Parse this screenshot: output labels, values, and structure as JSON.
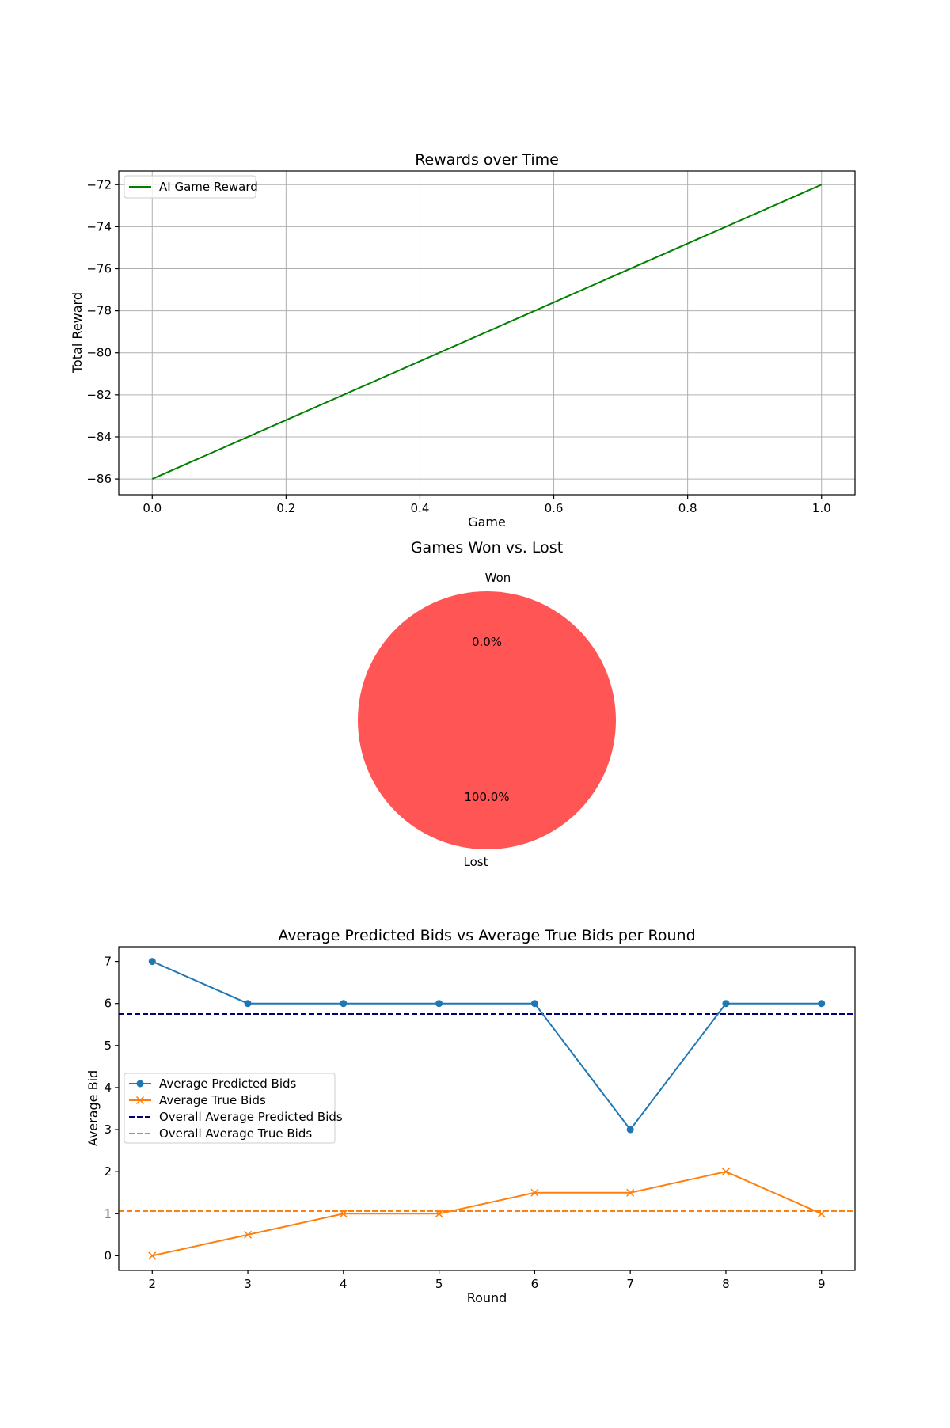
{
  "chart_data": [
    {
      "type": "line",
      "title": "Rewards over Time",
      "xlabel": "Game",
      "ylabel": "Total Reward",
      "xlim": [
        -0.05,
        1.05
      ],
      "ylim": [
        -86.75,
        -71.35
      ],
      "x_ticks": [
        0.0,
        0.2,
        0.4,
        0.6,
        0.8,
        1.0
      ],
      "x_tick_labels": [
        "0.0",
        "0.2",
        "0.4",
        "0.6",
        "0.8",
        "1.0"
      ],
      "y_ticks": [
        -72,
        -74,
        -76,
        -78,
        -80,
        -82,
        -84,
        -86
      ],
      "y_tick_labels": [
        "−72",
        "−74",
        "−76",
        "−78",
        "−80",
        "−82",
        "−84",
        "−86"
      ],
      "grid": true,
      "legend": "top-left",
      "series": [
        {
          "name": "AI Game Reward",
          "x": [
            0.0,
            1.0
          ],
          "y": [
            -86,
            -72
          ],
          "color": "#008000"
        }
      ]
    },
    {
      "type": "pie",
      "title": "Games Won vs. Lost",
      "slices": [
        {
          "label": "Won",
          "value": 0,
          "pct_label": "0.0%",
          "color": "#5cb85c"
        },
        {
          "label": "Lost",
          "value": 100,
          "pct_label": "100.0%",
          "color": "#ff5555"
        }
      ]
    },
    {
      "type": "line",
      "title": "Average Predicted Bids vs Average True Bids per Round",
      "xlabel": "Round",
      "ylabel": "Average Bid",
      "xlim": [
        1.65,
        9.35
      ],
      "ylim": [
        -0.35,
        7.35
      ],
      "x_ticks": [
        2,
        3,
        4,
        5,
        6,
        7,
        8,
        9
      ],
      "x_tick_labels": [
        "2",
        "3",
        "4",
        "5",
        "6",
        "7",
        "8",
        "9"
      ],
      "y_ticks": [
        0,
        1,
        2,
        3,
        4,
        5,
        6,
        7
      ],
      "y_tick_labels": [
        "0",
        "1",
        "2",
        "3",
        "4",
        "5",
        "6",
        "7"
      ],
      "grid": false,
      "legend": "center-left",
      "series": [
        {
          "name": "Average Predicted Bids",
          "x": [
            2,
            3,
            4,
            5,
            6,
            7,
            8,
            9
          ],
          "y": [
            7,
            6,
            6,
            6,
            6,
            3,
            6,
            6
          ],
          "color": "#1f77b4",
          "marker": "circle"
        },
        {
          "name": "Average True Bids",
          "x": [
            2,
            3,
            4,
            5,
            6,
            7,
            8,
            9
          ],
          "y": [
            0,
            0.5,
            1,
            1,
            1.5,
            1.5,
            2,
            1
          ],
          "color": "#ff7f0e",
          "marker": "x"
        }
      ],
      "reference_lines": [
        {
          "name": "Overall Average Predicted Bids",
          "y": 5.75,
          "color": "#00007f",
          "style": "dashed"
        },
        {
          "name": "Overall Average True Bids",
          "y": 1.0625,
          "color": "#ff7f0e",
          "style": "dashed"
        }
      ]
    }
  ]
}
